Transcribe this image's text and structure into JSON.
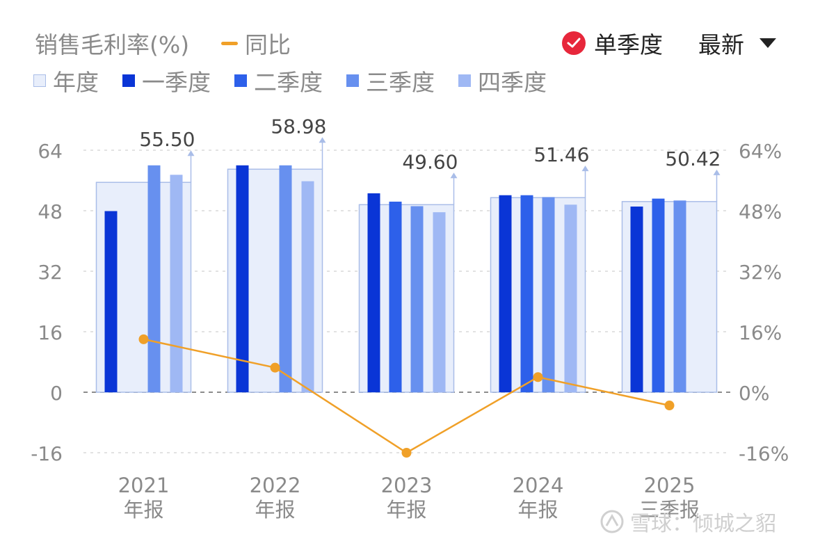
{
  "header": {
    "title": "销售毛利率(%)",
    "yoy_label": "同比",
    "single_quarter_label": "单季度",
    "latest_label": "最新"
  },
  "legend": [
    {
      "name": "年度",
      "color": "#e8eefb",
      "border": "#a9bde8"
    },
    {
      "name": "一季度",
      "color": "#0a35d6"
    },
    {
      "name": "二季度",
      "color": "#2d60ea"
    },
    {
      "name": "三季度",
      "color": "#6790ef"
    },
    {
      "name": "四季度",
      "color": "#9fb8f4"
    }
  ],
  "watermark": "雪球：倾城之貂",
  "colors": {
    "yoy_line": "#f0a028",
    "axis_text": "#8a8a8a",
    "grid": "#d9d9d9",
    "check_red": "#e7273b"
  },
  "chart_data": {
    "type": "bar",
    "categories": [
      [
        "2021",
        "年报"
      ],
      [
        "2022",
        "年报"
      ],
      [
        "2023",
        "年报"
      ],
      [
        "2024",
        "年报"
      ],
      [
        "2025",
        "三季报"
      ]
    ],
    "annual": [
      55.5,
      58.98,
      49.6,
      51.46,
      50.42
    ],
    "annual_labels": [
      "55.50",
      "58.98",
      "49.60",
      "51.46",
      "50.42"
    ],
    "series": [
      {
        "name": "一季度",
        "values": [
          47.9,
          60.0,
          52.6,
          52.1,
          49.1
        ]
      },
      {
        "name": "二季度",
        "values": [
          null,
          null,
          50.4,
          52.1,
          51.2
        ]
      },
      {
        "name": "三季度",
        "values": [
          60.0,
          60.0,
          49.2,
          51.6,
          50.7
        ]
      },
      {
        "name": "四季度",
        "values": [
          57.5,
          55.8,
          47.6,
          49.6,
          null
        ]
      }
    ],
    "yoy": [
      14.0,
      6.5,
      -16.0,
      4.0,
      -3.5
    ],
    "y_left": {
      "ticks": [
        "64",
        "48",
        "32",
        "16",
        "0",
        "-16"
      ],
      "range": [
        -16,
        64
      ]
    },
    "y_right": {
      "ticks": [
        "64%",
        "48%",
        "32%",
        "16%",
        "0%",
        "-16%"
      ],
      "range": [
        -16,
        64
      ]
    }
  }
}
